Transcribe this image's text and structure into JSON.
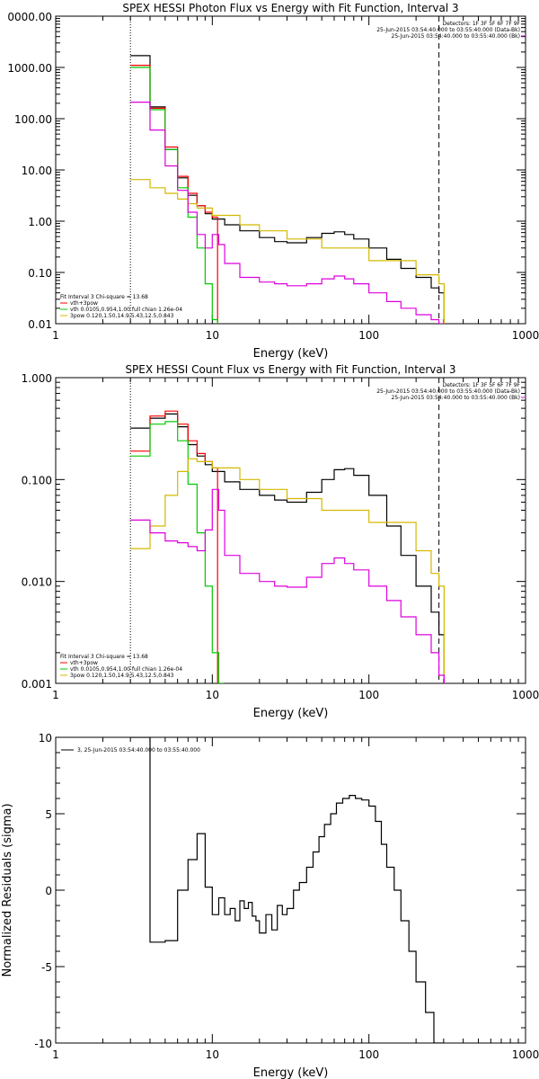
{
  "chart_data": [
    {
      "type": "line",
      "title": "SPEX HESSI Photon Flux vs Energy with Fit Function, Interval 3",
      "xlabel": "Energy (keV)",
      "ylabel": "",
      "xscale": "log",
      "yscale": "log",
      "xlim": [
        1,
        1000
      ],
      "ylim": [
        0.01,
        10000
      ],
      "x_ticks": [
        "1",
        "10",
        "100",
        "1000"
      ],
      "y_ticks": [
        "0.01",
        "0.10",
        "1.00",
        "10.00",
        "100.00",
        "1000.00",
        "0000.00"
      ],
      "vlines": [
        {
          "x": 3,
          "style": "dotted"
        },
        {
          "x": 280,
          "style": "dashed"
        }
      ],
      "legend_top": [
        "Detectors: 1F 3F 5F 6F 7F 9F",
        "25-Jun-2015 03:54:40.000 to 03:55:40.000 (Data-Bk)",
        "25-Jun-2015 03:54:40.000 to 03:55:40.000 (Bk)"
      ],
      "legend_bottom": [
        "Fit Interval 3   Chi-square = 13.68",
        "vth+3pow",
        "vth 0.0105,0.954,1.00  full chian 1.26e-04",
        "3pow 0.120,1.50,14.9,5.43,12.5,0.843"
      ],
      "series": [
        {
          "name": "Data-Bk",
          "color": "#000000",
          "x": [
            3,
            4,
            5,
            6,
            7,
            8,
            9,
            10,
            12,
            15,
            20,
            25,
            30,
            40,
            50,
            60,
            70,
            80,
            100,
            130,
            160,
            200,
            250,
            280
          ],
          "y": [
            1700,
            170,
            25,
            7,
            3.2,
            2,
            1.4,
            1.1,
            0.85,
            0.65,
            0.48,
            0.4,
            0.38,
            0.48,
            0.58,
            0.62,
            0.55,
            0.45,
            0.3,
            0.18,
            0.12,
            0.08,
            0.05,
            0.04
          ]
        },
        {
          "name": "vth+3pow",
          "color": "#ff0000",
          "x": [
            3,
            4,
            5,
            6,
            7,
            8,
            9,
            10
          ],
          "y": [
            1100,
            160,
            28,
            7.5,
            3.5,
            2,
            1.5,
            1.2
          ]
        },
        {
          "name": "vth",
          "color": "#00cc00",
          "x": [
            3,
            4,
            5,
            6,
            7,
            8,
            9,
            10
          ],
          "y": [
            1000,
            150,
            25,
            4.5,
            1.2,
            0.3,
            0.06,
            0.012
          ]
        },
        {
          "name": "3pow",
          "color": "#d4b800",
          "x": [
            3,
            4,
            5,
            6,
            7,
            8,
            10,
            15,
            20,
            30,
            50,
            100,
            200,
            280
          ],
          "y": [
            6.5,
            4.5,
            3.5,
            2.7,
            2.2,
            1.8,
            1.3,
            0.85,
            0.65,
            0.45,
            0.3,
            0.17,
            0.09,
            0.06
          ]
        },
        {
          "name": "Bk",
          "color": "#dd00dd",
          "x": [
            3,
            4,
            5,
            6,
            7,
            8,
            9,
            10,
            11,
            12,
            15,
            20,
            25,
            30,
            40,
            50,
            60,
            70,
            80,
            100,
            130,
            160,
            200,
            250,
            280
          ],
          "y": [
            210,
            60,
            12,
            4,
            1.5,
            0.55,
            0.3,
            0.55,
            0.35,
            0.15,
            0.08,
            0.065,
            0.06,
            0.055,
            0.06,
            0.075,
            0.085,
            0.075,
            0.06,
            0.04,
            0.027,
            0.02,
            0.015,
            0.012,
            0.01
          ]
        }
      ]
    },
    {
      "type": "line",
      "title": "SPEX HESSI Count Flux vs Energy with Fit Function, Interval 3",
      "xlabel": "Energy (keV)",
      "ylabel": "",
      "xscale": "log",
      "yscale": "log",
      "xlim": [
        1,
        1000
      ],
      "ylim": [
        0.001,
        1
      ],
      "x_ticks": [
        "1",
        "10",
        "100",
        "1000"
      ],
      "y_ticks": [
        "0.001",
        "0.010",
        "0.100",
        "1.000"
      ],
      "vlines": [
        {
          "x": 3,
          "style": "dotted"
        },
        {
          "x": 280,
          "style": "dashed"
        }
      ],
      "legend_top": [
        "Detectors: 1F 3F 5F 6F 7F 9F",
        "25-Jun-2015 03:54:40.000 to 03:55:40.000 (Data-Bk)",
        "25-Jun-2015 03:54:40.000 to 03:55:40.000 (Bk)"
      ],
      "legend_bottom": [
        "Fit Interval 3   Chi-square = 13.68",
        "vth+3pow",
        "vth 0.0105,0.954,1.00  full chian 1.26e-04",
        "3pow 0.120,1.50,14.9,5.43,12.5,0.843"
      ],
      "series": [
        {
          "name": "Data-Bk",
          "color": "#000000",
          "x": [
            3,
            4,
            5,
            6,
            7,
            8,
            9,
            10,
            12,
            15,
            20,
            25,
            30,
            40,
            50,
            60,
            70,
            80,
            100,
            130,
            160,
            200,
            250,
            280
          ],
          "y": [
            0.32,
            0.4,
            0.44,
            0.33,
            0.22,
            0.17,
            0.14,
            0.12,
            0.095,
            0.08,
            0.07,
            0.063,
            0.06,
            0.075,
            0.1,
            0.125,
            0.128,
            0.11,
            0.07,
            0.035,
            0.018,
            0.009,
            0.005,
            0.003
          ]
        },
        {
          "name": "vth+3pow",
          "color": "#ff0000",
          "x": [
            3,
            4,
            5,
            6,
            7,
            8,
            9,
            10
          ],
          "y": [
            0.19,
            0.42,
            0.47,
            0.35,
            0.24,
            0.18,
            0.15,
            0.13
          ]
        },
        {
          "name": "vth",
          "color": "#00cc00",
          "x": [
            3,
            4,
            5,
            6,
            7,
            8,
            9,
            10,
            11
          ],
          "y": [
            0.17,
            0.35,
            0.37,
            0.24,
            0.09,
            0.03,
            0.009,
            0.002,
            0.001
          ]
        },
        {
          "name": "3pow",
          "color": "#d4b800",
          "x": [
            3,
            4,
            5,
            6,
            7,
            8,
            10,
            15,
            20,
            30,
            50,
            100,
            200,
            250,
            280
          ],
          "y": [
            0.021,
            0.035,
            0.07,
            0.12,
            0.16,
            0.15,
            0.13,
            0.1,
            0.08,
            0.065,
            0.05,
            0.038,
            0.02,
            0.012,
            0.009
          ]
        },
        {
          "name": "Bk",
          "color": "#dd00dd",
          "x": [
            3,
            4,
            5,
            6,
            7,
            8,
            9,
            10,
            11,
            12,
            15,
            20,
            25,
            30,
            40,
            50,
            60,
            70,
            80,
            100,
            130,
            160,
            200,
            250,
            280
          ],
          "y": [
            0.04,
            0.03,
            0.025,
            0.024,
            0.022,
            0.02,
            0.032,
            0.08,
            0.05,
            0.018,
            0.012,
            0.01,
            0.009,
            0.0088,
            0.011,
            0.015,
            0.017,
            0.015,
            0.013,
            0.009,
            0.0065,
            0.0045,
            0.003,
            0.002,
            0.0012
          ]
        }
      ]
    },
    {
      "type": "line",
      "title": "",
      "xlabel": "Energy (keV)",
      "ylabel": "Normalized Residuals (sigma)",
      "xscale": "log",
      "yscale": "linear",
      "xlim": [
        1,
        1000
      ],
      "ylim": [
        -10,
        10
      ],
      "x_ticks": [
        "1",
        "10",
        "100",
        "1000"
      ],
      "y_ticks": [
        "-10",
        "-5",
        "0",
        "5",
        "10"
      ],
      "legend": [
        "3, 25-Jun-2015 03:54:40.000 to 03:55:40.000"
      ],
      "series": [
        {
          "name": "3, 25-Jun-2015 03:54:40.000 to 03:55:40.000",
          "color": "#000000",
          "x": [
            3,
            4,
            5,
            6,
            7,
            8,
            9,
            10,
            11,
            12,
            13,
            14,
            15,
            16,
            17,
            18,
            19,
            20,
            22,
            24,
            26,
            28,
            30,
            33,
            36,
            40,
            44,
            48,
            52,
            57,
            62,
            68,
            75,
            82,
            90,
            100,
            110,
            120,
            130,
            145,
            160,
            180,
            200,
            230,
            260,
            280
          ],
          "y": [
            10,
            -3.4,
            -3.3,
            0,
            2,
            3.7,
            0.2,
            -1.6,
            -0.5,
            -1.6,
            -1.2,
            -2.0,
            -0.7,
            -1.2,
            -0.8,
            -1.7,
            -2.0,
            -2.8,
            -1.6,
            -2.6,
            -1.0,
            -1.6,
            -1.2,
            0.0,
            0.5,
            1.5,
            2.5,
            3.5,
            4.3,
            5.0,
            5.7,
            6.0,
            6.2,
            6.0,
            5.9,
            5.5,
            4.5,
            3.0,
            1.5,
            0.0,
            -2.0,
            -4.0,
            -6.0,
            -8.0,
            -10,
            -10
          ]
        }
      ]
    }
  ]
}
